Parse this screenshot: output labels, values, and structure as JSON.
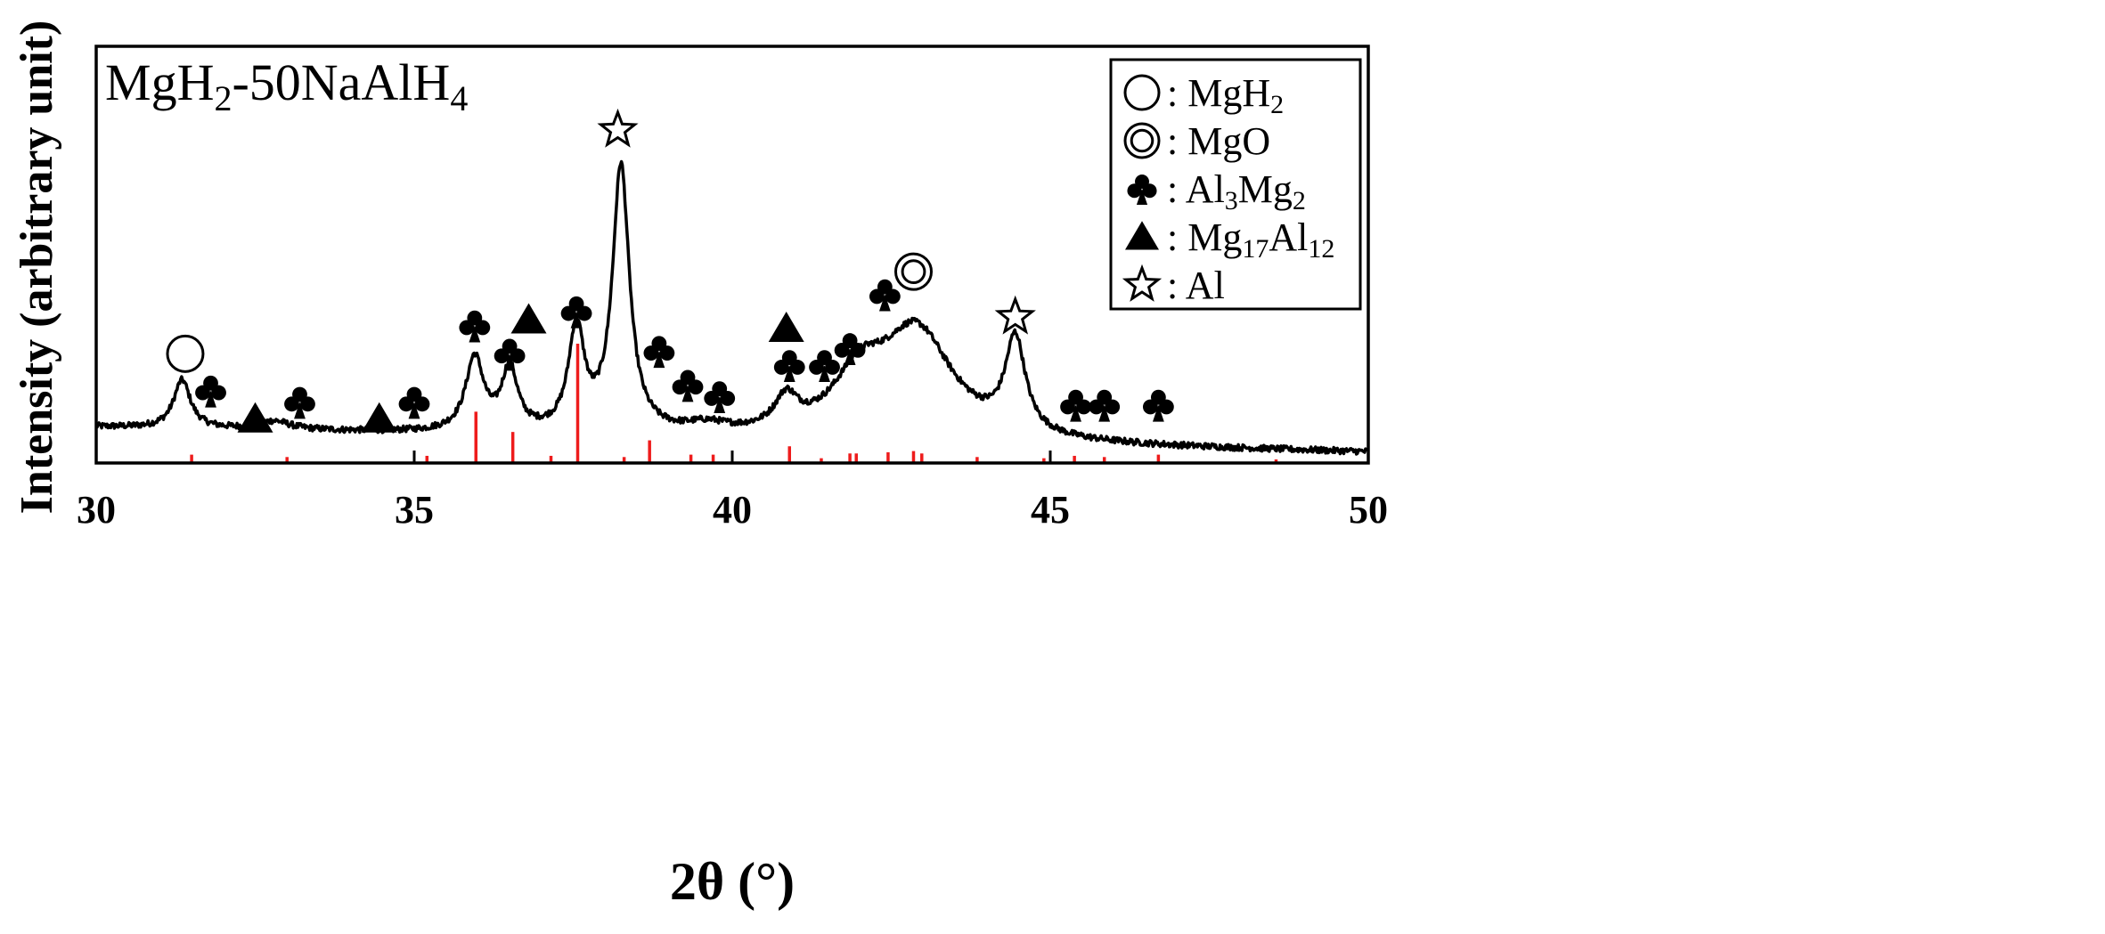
{
  "chart_data": {
    "type": "line",
    "sample_label": {
      "base": "MgH",
      "sub1": "2",
      "mid": "-50NaAlH",
      "sub2": "4"
    },
    "xlabel": "2θ (°)",
    "ylabel": "Intensity (arbitrary unit)",
    "xlim": [
      30,
      50
    ],
    "x_ticks": [
      30,
      35,
      40,
      45,
      50
    ],
    "y_scale": "arbitrary, no tick labels",
    "grid": false,
    "legend_position": "top-right",
    "legend": [
      {
        "symbol": "circle",
        "label": [
          {
            "t": ": MgH"
          },
          {
            "t": "2",
            "sub": true
          }
        ]
      },
      {
        "symbol": "double-circle",
        "label": [
          {
            "t": ": MgO"
          }
        ]
      },
      {
        "symbol": "club",
        "label": [
          {
            "t": ": Al"
          },
          {
            "t": "3",
            "sub": true
          },
          {
            "t": "Mg"
          },
          {
            "t": "2",
            "sub": true
          }
        ]
      },
      {
        "symbol": "triangle",
        "label": [
          {
            "t": ": Mg"
          },
          {
            "t": "17",
            "sub": true
          },
          {
            "t": "Al"
          },
          {
            "t": "12",
            "sub": true
          }
        ]
      },
      {
        "symbol": "star",
        "label": [
          {
            "t": ": Al"
          }
        ]
      }
    ],
    "pattern": {
      "color": "#000000",
      "baseline_left": 0.11,
      "baseline_right": 0.02,
      "peaks": [
        {
          "x": 31.35,
          "h": 0.17,
          "w": 0.16
        },
        {
          "x": 32.8,
          "h": 0.03,
          "w": 0.3
        },
        {
          "x": 35.95,
          "h": 0.26,
          "w": 0.17
        },
        {
          "x": 36.5,
          "h": 0.22,
          "w": 0.15
        },
        {
          "x": 37.55,
          "h": 0.36,
          "w": 0.15
        },
        {
          "x": 38.25,
          "h": 0.94,
          "w": 0.16
        },
        {
          "x": 39.6,
          "h": 0.03,
          "w": 0.4
        },
        {
          "x": 40.85,
          "h": 0.11,
          "w": 0.22
        },
        {
          "x": 42.0,
          "h": 0.18,
          "w": 0.5
        },
        {
          "x": 42.9,
          "h": 0.38,
          "w": 0.7
        },
        {
          "x": 44.45,
          "h": 0.33,
          "w": 0.19
        }
      ]
    },
    "reference_lines": {
      "color": "#ee1c1c",
      "lines": [
        {
          "x": 31.5,
          "h": 0.07
        },
        {
          "x": 33.0,
          "h": 0.05
        },
        {
          "x": 35.2,
          "h": 0.06
        },
        {
          "x": 35.97,
          "h": 0.43
        },
        {
          "x": 36.55,
          "h": 0.26
        },
        {
          "x": 37.15,
          "h": 0.06
        },
        {
          "x": 37.57,
          "h": 1.0
        },
        {
          "x": 38.3,
          "h": 0.05
        },
        {
          "x": 38.7,
          "h": 0.19
        },
        {
          "x": 39.35,
          "h": 0.07
        },
        {
          "x": 39.7,
          "h": 0.07
        },
        {
          "x": 40.9,
          "h": 0.14
        },
        {
          "x": 41.4,
          "h": 0.04
        },
        {
          "x": 41.85,
          "h": 0.08
        },
        {
          "x": 41.95,
          "h": 0.08
        },
        {
          "x": 42.45,
          "h": 0.09
        },
        {
          "x": 42.85,
          "h": 0.1
        },
        {
          "x": 42.98,
          "h": 0.08
        },
        {
          "x": 43.85,
          "h": 0.05
        },
        {
          "x": 44.9,
          "h": 0.04
        },
        {
          "x": 45.38,
          "h": 0.06
        },
        {
          "x": 45.85,
          "h": 0.05
        },
        {
          "x": 46.7,
          "h": 0.07
        },
        {
          "x": 48.55,
          "h": 0.03
        }
      ]
    },
    "phase_markers": [
      {
        "symbol": "circle",
        "x": 31.4,
        "level": 0.37
      },
      {
        "symbol": "club",
        "x": 31.8,
        "level": 0.24
      },
      {
        "symbol": "triangle",
        "x": 32.5,
        "level": 0.14
      },
      {
        "symbol": "club",
        "x": 33.2,
        "level": 0.2
      },
      {
        "symbol": "triangle",
        "x": 34.45,
        "level": 0.14
      },
      {
        "symbol": "club",
        "x": 35.0,
        "level": 0.2
      },
      {
        "symbol": "club",
        "x": 35.95,
        "level": 0.47
      },
      {
        "symbol": "club",
        "x": 36.5,
        "level": 0.37
      },
      {
        "symbol": "triangle",
        "x": 36.8,
        "level": 0.49
      },
      {
        "symbol": "club",
        "x": 37.55,
        "level": 0.52
      },
      {
        "symbol": "star",
        "x": 38.2,
        "level": 1.16
      },
      {
        "symbol": "club",
        "x": 38.85,
        "level": 0.38
      },
      {
        "symbol": "club",
        "x": 39.3,
        "level": 0.26
      },
      {
        "symbol": "club",
        "x": 39.8,
        "level": 0.22
      },
      {
        "symbol": "triangle",
        "x": 40.85,
        "level": 0.46
      },
      {
        "symbol": "club",
        "x": 40.9,
        "level": 0.33
      },
      {
        "symbol": "club",
        "x": 41.45,
        "level": 0.33
      },
      {
        "symbol": "club",
        "x": 41.85,
        "level": 0.39
      },
      {
        "symbol": "club",
        "x": 42.4,
        "level": 0.58
      },
      {
        "symbol": "double-circle",
        "x": 42.85,
        "level": 0.66
      },
      {
        "symbol": "star",
        "x": 44.45,
        "level": 0.5
      },
      {
        "symbol": "club",
        "x": 45.4,
        "level": 0.19
      },
      {
        "symbol": "club",
        "x": 45.85,
        "level": 0.19
      },
      {
        "symbol": "club",
        "x": 46.7,
        "level": 0.19
      }
    ]
  }
}
